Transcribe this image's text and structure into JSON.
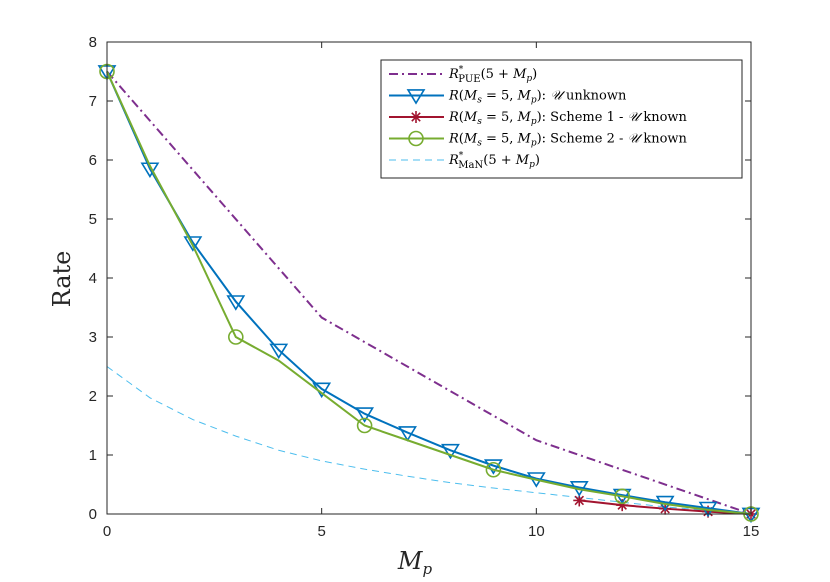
{
  "chart_data": {
    "type": "line",
    "title": "",
    "xlabel": "M_p",
    "ylabel": "Rate",
    "xlim": [
      0,
      15
    ],
    "ylim": [
      0,
      8
    ],
    "xticks": [
      0,
      5,
      10,
      15
    ],
    "yticks": [
      0,
      1,
      2,
      3,
      4,
      5,
      6,
      7,
      8
    ],
    "grid": false,
    "legend_position": "top-right",
    "series": [
      {
        "name": "R*_PUE(5 + M_p)",
        "legend_html": "R<tspan font-size='9' dy='-6'>*</tspan><tspan font-size='10' dy='10' dx='-4'>PUE</tspan><tspan dy='-4'>(5 + M</tspan><tspan font-size='9' dy='3'>p</tspan><tspan dy='-3'>)</tspan>",
        "color": "#7E2F8E",
        "style": "dashdot",
        "marker": "none",
        "x": [
          0,
          5,
          10,
          15
        ],
        "y": [
          7.5,
          3.33,
          1.25,
          0
        ]
      },
      {
        "name": "R(M_s = 5, M_p): U unknown",
        "color": "#0072BD",
        "style": "solid",
        "marker": "triangle-down",
        "x": [
          0,
          1,
          2,
          3,
          4,
          5,
          6,
          7,
          8,
          9,
          10,
          11,
          12,
          13,
          14,
          15
        ],
        "y": [
          7.5,
          5.85,
          4.6,
          3.6,
          2.78,
          2.12,
          1.7,
          1.38,
          1.08,
          0.82,
          0.6,
          0.45,
          0.32,
          0.2,
          0.1,
          0
        ]
      },
      {
        "name": "R(M_s = 5, M_p): Scheme 1 - U known",
        "color": "#A2142F",
        "style": "solid",
        "marker": "asterisk",
        "x": [
          11,
          12,
          13,
          14,
          15
        ],
        "y": [
          0.23,
          0.15,
          0.09,
          0.04,
          0
        ]
      },
      {
        "name": "R(M_s = 5, M_p): Scheme 2 - U known",
        "color": "#77AC30",
        "style": "solid",
        "marker": "circle",
        "marker_x": [
          0,
          3,
          6,
          9,
          12,
          15
        ],
        "x": [
          0,
          1,
          2,
          3,
          4,
          5,
          6,
          7,
          8,
          9,
          10,
          11,
          12,
          13,
          14,
          15
        ],
        "y": [
          7.5,
          5.9,
          4.55,
          3.0,
          2.6,
          2.05,
          1.5,
          1.25,
          1.0,
          0.75,
          0.58,
          0.42,
          0.3,
          0.17,
          0.07,
          0
        ]
      },
      {
        "name": "R*_MaN(5 + M_p)",
        "color": "#4DBEEE",
        "style": "dashed",
        "marker": "none",
        "x": [
          0,
          1,
          2,
          3,
          4,
          5,
          6,
          7,
          8,
          9,
          10,
          11,
          12,
          13,
          14,
          15
        ],
        "y": [
          2.5,
          1.97,
          1.6,
          1.32,
          1.08,
          0.9,
          0.76,
          0.64,
          0.53,
          0.44,
          0.36,
          0.28,
          0.2,
          0.12,
          0.06,
          0
        ]
      }
    ]
  }
}
